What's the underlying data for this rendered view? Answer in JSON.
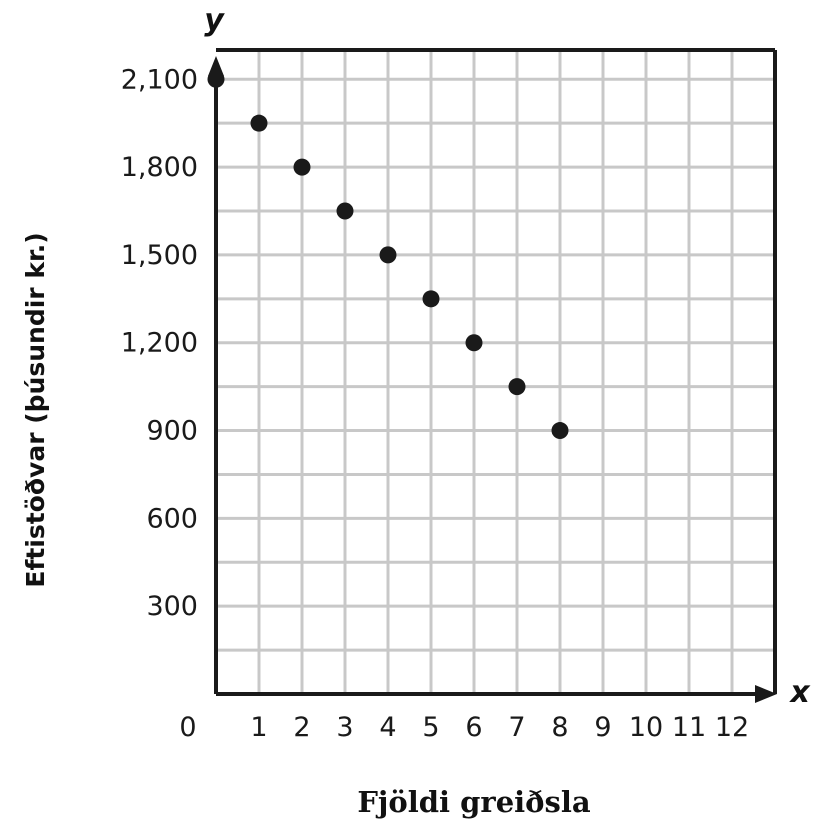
{
  "chart_data": {
    "type": "scatter",
    "x_axis_symbol": "x",
    "y_axis_symbol": "y",
    "xlabel": "Fjöldi greiðsla",
    "ylabel": "Eftistöðvar (þúsundir kr.)",
    "xlim": [
      0,
      13
    ],
    "ylim": [
      0,
      2200
    ],
    "x_ticks": [
      "0",
      "1",
      "2",
      "3",
      "4",
      "5",
      "6",
      "7",
      "8",
      "9",
      "10",
      "11",
      "12"
    ],
    "y_ticks": [
      "300",
      "600",
      "900",
      "1,200",
      "1,500",
      "1,800",
      "2,100"
    ],
    "grid": true,
    "x": [
      0,
      1,
      2,
      3,
      4,
      5,
      6,
      7,
      8
    ],
    "y": [
      2100,
      1950,
      1800,
      1650,
      1500,
      1350,
      1200,
      1050,
      900
    ],
    "colors": {
      "points": "#1a1a1a",
      "grid": "#c8c8c8",
      "frame": "#1a1a1a"
    }
  }
}
